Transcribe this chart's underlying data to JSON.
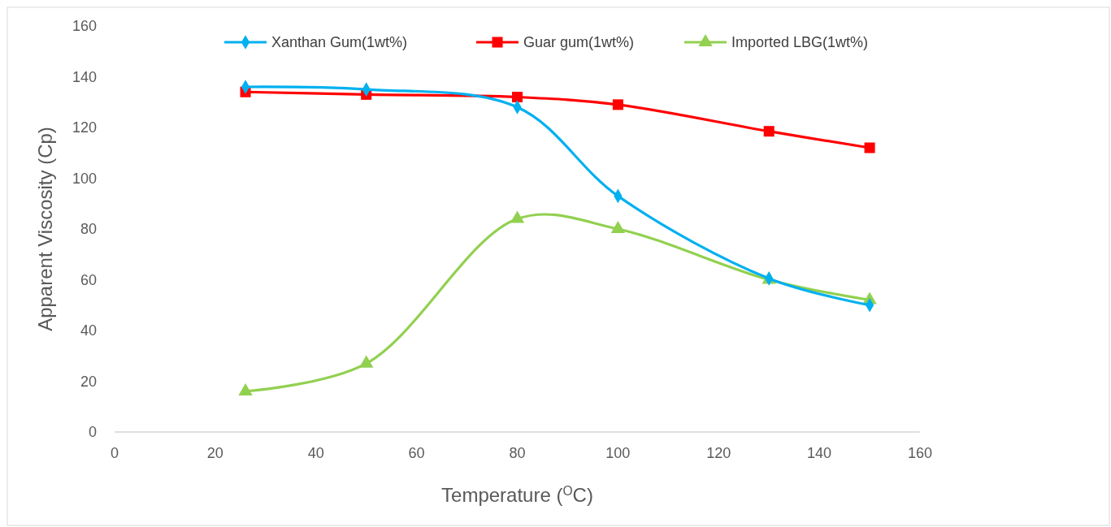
{
  "chart_data": {
    "type": "line",
    "xlabel": "Temperature ($^{O}$C)",
    "ylabel": "Apparent Viscosity (Cp)",
    "x": [
      26,
      50,
      80,
      100,
      130,
      150
    ],
    "series": [
      {
        "name": "Xanthan  Gum(1wt%)",
        "color": "#00b0f0",
        "marker": "diamond",
        "values": [
          136,
          135,
          128,
          93,
          60.5,
          50
        ]
      },
      {
        "name": "Guar gum(1wt%)",
        "color": "#ff0000",
        "marker": "square",
        "values": [
          134,
          133,
          132,
          129,
          118.5,
          112
        ]
      },
      {
        "name": "Imported LBG(1wt%)",
        "color": "#92d050",
        "marker": "triangle",
        "values": [
          16,
          27,
          84,
          80,
          60,
          52
        ]
      }
    ],
    "xlim": [
      0,
      160
    ],
    "xticks": [
      0,
      20,
      40,
      60,
      80,
      100,
      120,
      140,
      160
    ],
    "ylim": [
      0,
      160
    ],
    "yticks": [
      0,
      20,
      40,
      60,
      80,
      100,
      120,
      140,
      160
    ],
    "grid": false,
    "legend": "top"
  }
}
